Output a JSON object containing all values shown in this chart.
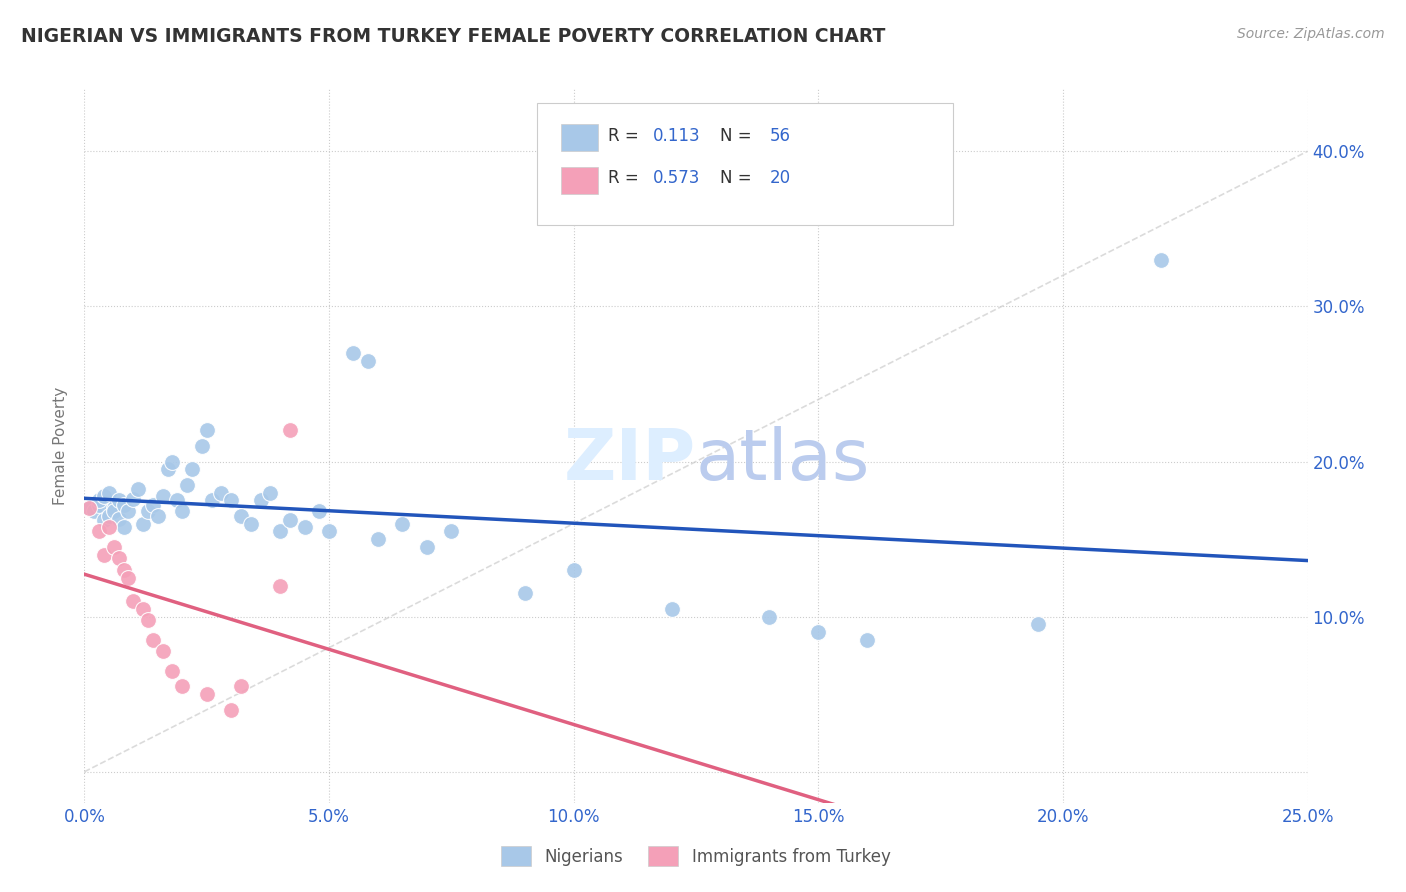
{
  "title": "NIGERIAN VS IMMIGRANTS FROM TURKEY FEMALE POVERTY CORRELATION CHART",
  "source": "Source: ZipAtlas.com",
  "ylabel_label": "Female Poverty",
  "xlim": [
    0.0,
    0.25
  ],
  "ylim": [
    -0.02,
    0.44
  ],
  "xticks": [
    0.0,
    0.05,
    0.1,
    0.15,
    0.2,
    0.25
  ],
  "yticks": [
    0.0,
    0.1,
    0.2,
    0.3,
    0.4
  ],
  "xticklabels": [
    "0.0%",
    "5.0%",
    "10.0%",
    "15.0%",
    "20.0%",
    "25.0%"
  ],
  "yticklabels_left": [
    "",
    "",
    "",
    "",
    ""
  ],
  "yticklabels_right": [
    "",
    "10.0%",
    "20.0%",
    "30.0%",
    "40.0%"
  ],
  "legend_labels": [
    "Nigerians",
    "Immigrants from Turkey"
  ],
  "legend1_R": "0.113",
  "legend1_N": "56",
  "legend2_R": "0.573",
  "legend2_N": "20",
  "blue_color": "#a8c8e8",
  "pink_color": "#f4a0b8",
  "blue_line_color": "#2255bb",
  "pink_line_color": "#e06080",
  "diag_line_color": "#cccccc",
  "blue_scatter": [
    [
      0.001,
      0.17
    ],
    [
      0.002,
      0.168
    ],
    [
      0.003,
      0.172
    ],
    [
      0.003,
      0.175
    ],
    [
      0.004,
      0.162
    ],
    [
      0.004,
      0.178
    ],
    [
      0.005,
      0.165
    ],
    [
      0.005,
      0.18
    ],
    [
      0.006,
      0.17
    ],
    [
      0.006,
      0.168
    ],
    [
      0.007,
      0.175
    ],
    [
      0.007,
      0.163
    ],
    [
      0.008,
      0.172
    ],
    [
      0.008,
      0.158
    ],
    [
      0.009,
      0.168
    ],
    [
      0.01,
      0.176
    ],
    [
      0.011,
      0.182
    ],
    [
      0.012,
      0.16
    ],
    [
      0.013,
      0.168
    ],
    [
      0.014,
      0.172
    ],
    [
      0.015,
      0.165
    ],
    [
      0.016,
      0.178
    ],
    [
      0.017,
      0.195
    ],
    [
      0.018,
      0.2
    ],
    [
      0.019,
      0.175
    ],
    [
      0.02,
      0.168
    ],
    [
      0.021,
      0.185
    ],
    [
      0.022,
      0.195
    ],
    [
      0.024,
      0.21
    ],
    [
      0.025,
      0.22
    ],
    [
      0.026,
      0.175
    ],
    [
      0.028,
      0.18
    ],
    [
      0.03,
      0.175
    ],
    [
      0.032,
      0.165
    ],
    [
      0.034,
      0.16
    ],
    [
      0.036,
      0.175
    ],
    [
      0.038,
      0.18
    ],
    [
      0.04,
      0.155
    ],
    [
      0.042,
      0.162
    ],
    [
      0.045,
      0.158
    ],
    [
      0.048,
      0.168
    ],
    [
      0.05,
      0.155
    ],
    [
      0.055,
      0.27
    ],
    [
      0.058,
      0.265
    ],
    [
      0.06,
      0.15
    ],
    [
      0.065,
      0.16
    ],
    [
      0.07,
      0.145
    ],
    [
      0.075,
      0.155
    ],
    [
      0.09,
      0.115
    ],
    [
      0.1,
      0.13
    ],
    [
      0.12,
      0.105
    ],
    [
      0.14,
      0.1
    ],
    [
      0.15,
      0.09
    ],
    [
      0.16,
      0.085
    ],
    [
      0.195,
      0.095
    ],
    [
      0.22,
      0.33
    ]
  ],
  "pink_scatter": [
    [
      0.001,
      0.17
    ],
    [
      0.003,
      0.155
    ],
    [
      0.004,
      0.14
    ],
    [
      0.005,
      0.158
    ],
    [
      0.006,
      0.145
    ],
    [
      0.007,
      0.138
    ],
    [
      0.008,
      0.13
    ],
    [
      0.009,
      0.125
    ],
    [
      0.01,
      0.11
    ],
    [
      0.012,
      0.105
    ],
    [
      0.013,
      0.098
    ],
    [
      0.014,
      0.085
    ],
    [
      0.016,
      0.078
    ],
    [
      0.018,
      0.065
    ],
    [
      0.02,
      0.055
    ],
    [
      0.025,
      0.05
    ],
    [
      0.03,
      0.04
    ],
    [
      0.032,
      0.055
    ],
    [
      0.04,
      0.12
    ],
    [
      0.042,
      0.22
    ]
  ],
  "background_color": "#ffffff",
  "grid_color": "#cccccc",
  "title_color": "#333333",
  "axis_label_color": "#777777",
  "tick_color": "#3366cc",
  "watermark_zip_color": "#ddeeff",
  "watermark_atlas_color": "#bbccee"
}
